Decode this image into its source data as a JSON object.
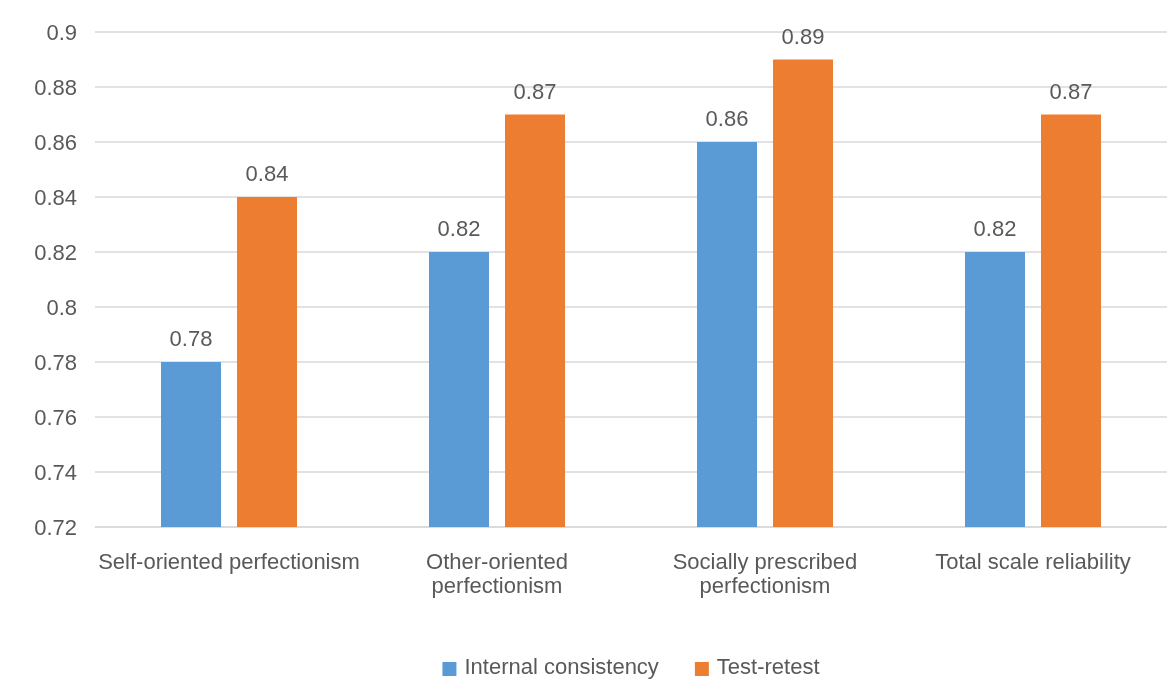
{
  "chart_data": {
    "type": "bar",
    "categories": [
      "Self-oriented perfectionism",
      "Other-oriented perfectionism",
      "Socially prescribed perfectionism",
      "Total scale reliability"
    ],
    "series": [
      {
        "name": "Internal consistency",
        "color": "#5b9bd5",
        "values": [
          0.78,
          0.82,
          0.86,
          0.82
        ]
      },
      {
        "name": "Test-retest",
        "color": "#ed7d31",
        "values": [
          0.84,
          0.87,
          0.89,
          0.87
        ]
      }
    ],
    "ylim": [
      0.72,
      0.9
    ],
    "yticks": [
      0.72,
      0.74,
      0.76,
      0.78,
      0.8,
      0.82,
      0.84,
      0.86,
      0.88,
      0.9
    ],
    "grid": "y",
    "legend": "bottom",
    "data_labels": true
  }
}
